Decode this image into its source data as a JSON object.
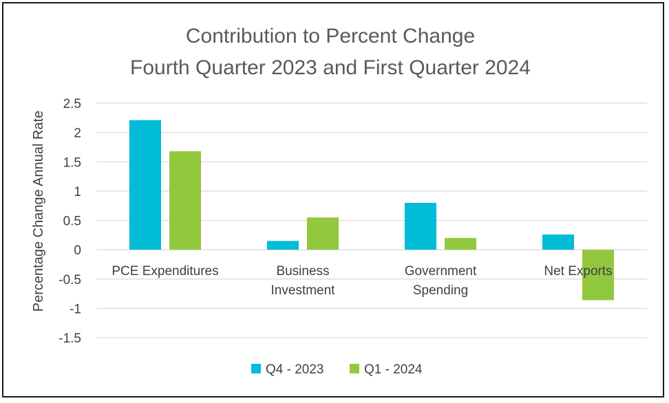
{
  "chart_data": {
    "type": "bar",
    "title": [
      "Contribution to Percent Change",
      "Fourth Quarter 2023 and First Quarter 2024"
    ],
    "ylabel": "Percentage Change Annual Rate",
    "xlabel": "",
    "categories": [
      [
        "PCE Expenditures"
      ],
      [
        "Business",
        "Investment"
      ],
      [
        "Government",
        "Spending"
      ],
      [
        "Net Exports"
      ]
    ],
    "series": [
      {
        "name": "Q4 - 2023",
        "color": "#00BCD6",
        "values": [
          2.21,
          0.15,
          0.8,
          0.26
        ]
      },
      {
        "name": "Q1 - 2024",
        "color": "#92C83E",
        "values": [
          1.68,
          0.55,
          0.2,
          -0.86
        ]
      }
    ],
    "ylim": [
      -1.5,
      2.5
    ],
    "yticks": [
      2.5,
      2,
      1.5,
      1,
      0.5,
      0,
      -0.5,
      -1,
      -1.5
    ],
    "ytick_labels": [
      "2.5",
      "2",
      "1.5",
      "1",
      "0.5",
      "0",
      "-0.5",
      "-1",
      "-1.5"
    ],
    "grid": true,
    "legend_position": "bottom"
  }
}
